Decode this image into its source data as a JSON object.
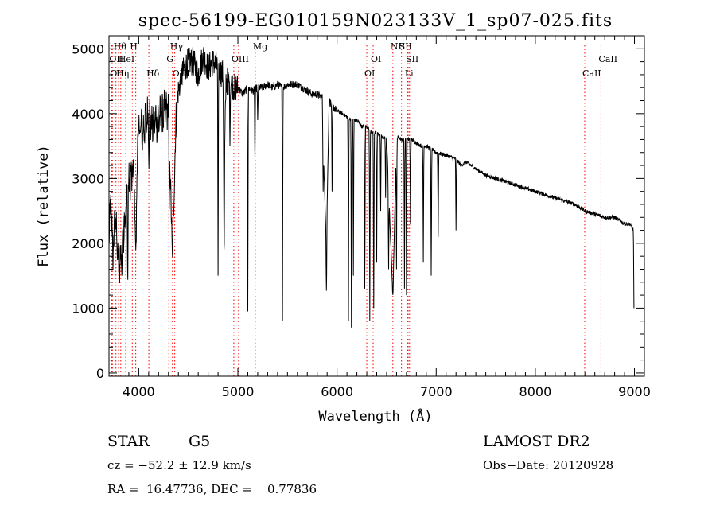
{
  "chart_data": {
    "type": "line",
    "title": "spec-56199-EG010159N023133V_1_sp07-025.fits",
    "xlabel": "Wavelength (Å)",
    "ylabel": "Flux (relative)",
    "xlim": [
      3700,
      9100
    ],
    "ylim": [
      -50,
      5200
    ],
    "xticks": [
      4000,
      5000,
      6000,
      7000,
      8000,
      9000
    ],
    "yticks": [
      0,
      1000,
      2000,
      3000,
      4000,
      5000
    ],
    "grid": false,
    "legend": "none",
    "line_color": "#000000",
    "marker_color": "#ff0000",
    "series": [
      {
        "x": [
          3700,
          3720,
          3740,
          3760,
          3780,
          3800,
          3830,
          3860,
          3890,
          3920,
          3950,
          3970,
          3990,
          4010,
          4040,
          4070,
          4100,
          4130,
          4160,
          4200,
          4250,
          4300,
          4340,
          4380,
          4420,
          4460,
          4500,
          4550,
          4600,
          4650,
          4700,
          4750,
          4800,
          4850,
          4861,
          4880,
          4920,
          4960,
          5000,
          5050,
          5100,
          5150,
          5200,
          5250,
          5300,
          5350,
          5400,
          5450,
          5500,
          5550,
          5600,
          5650,
          5700,
          5750,
          5800,
          5850,
          5870,
          5893,
          5920,
          5960,
          6000,
          6050,
          6100,
          6150,
          6200,
          6250,
          6300,
          6350,
          6400,
          6450,
          6500,
          6563,
          6600,
          6650,
          6700,
          6750,
          6800,
          6850,
          6900,
          6950,
          7000,
          7050,
          7100,
          7150,
          7200,
          7250,
          7300,
          7400,
          7500,
          7600,
          7700,
          7800,
          7900,
          8000,
          8100,
          8200,
          8300,
          8400,
          8500,
          8600,
          8700,
          8800,
          8900,
          8950,
          8990
        ],
        "y": [
          2200,
          2600,
          1800,
          2400,
          2100,
          1500,
          2000,
          2400,
          2800,
          3000,
          3100,
          1900,
          3600,
          3800,
          3700,
          3900,
          4000,
          3800,
          3900,
          3900,
          4000,
          4100,
          1800,
          4200,
          4500,
          4700,
          4800,
          4800,
          4600,
          4900,
          4700,
          4800,
          4700,
          4600,
          2900,
          4500,
          4500,
          4400,
          4400,
          4300,
          4400,
          4350,
          4400,
          4400,
          4450,
          4400,
          4450,
          4400,
          4450,
          4450,
          4450,
          4400,
          4350,
          4300,
          4300,
          4250,
          3000,
          2000,
          4200,
          4100,
          4050,
          4000,
          3950,
          3900,
          3900,
          3800,
          3800,
          3700,
          3700,
          3650,
          3600,
          1200,
          3650,
          3600,
          3600,
          3600,
          3550,
          3500,
          3500,
          3450,
          3400,
          3380,
          3360,
          3330,
          3300,
          3200,
          3250,
          3150,
          3050,
          3000,
          2950,
          2900,
          2850,
          2800,
          2750,
          2700,
          2650,
          2600,
          2500,
          2450,
          2400,
          2400,
          2300,
          2300,
          2200
        ]
      }
    ],
    "absorption_lines": [
      {
        "x": 3830,
        "y": 1500
      },
      {
        "x": 3889,
        "y": 1200
      },
      {
        "x": 3970,
        "y": 1900
      },
      {
        "x": 4102,
        "y": 3100
      },
      {
        "x": 4308,
        "y": 2400
      },
      {
        "x": 4340,
        "y": 1800
      },
      {
        "x": 4383,
        "y": 3600
      },
      {
        "x": 4800,
        "y": 1500
      },
      {
        "x": 4861,
        "y": 1650
      },
      {
        "x": 4920,
        "y": 3500
      },
      {
        "x": 5100,
        "y": 950
      },
      {
        "x": 5172,
        "y": 3200
      },
      {
        "x": 5200,
        "y": 3900
      },
      {
        "x": 5450,
        "y": 800
      },
      {
        "x": 5860,
        "y": 2800
      },
      {
        "x": 5893,
        "y": 1200
      },
      {
        "x": 5950,
        "y": 2800
      },
      {
        "x": 6115,
        "y": 800
      },
      {
        "x": 6145,
        "y": 700
      },
      {
        "x": 6165,
        "y": 1500
      },
      {
        "x": 6280,
        "y": 1300
      },
      {
        "x": 6330,
        "y": 800
      },
      {
        "x": 6370,
        "y": 1000
      },
      {
        "x": 6400,
        "y": 1700
      },
      {
        "x": 6440,
        "y": 2500
      },
      {
        "x": 6490,
        "y": 2700
      },
      {
        "x": 6520,
        "y": 1600
      },
      {
        "x": 6563,
        "y": 1200
      },
      {
        "x": 6600,
        "y": 1600
      },
      {
        "x": 6680,
        "y": 1300
      },
      {
        "x": 6700,
        "y": 1200
      },
      {
        "x": 6740,
        "y": 2300
      },
      {
        "x": 6870,
        "y": 1700
      },
      {
        "x": 6950,
        "y": 1500
      },
      {
        "x": 7020,
        "y": 2100
      },
      {
        "x": 7200,
        "y": 2200
      },
      {
        "x": 8995,
        "y": 1000
      }
    ],
    "line_markers": [
      {
        "x": 3727,
        "label": "OII",
        "row": 2
      },
      {
        "x": 3734,
        "label": "OII",
        "row": 3
      },
      {
        "x": 3770,
        "label": "Hθ",
        "row": 1
      },
      {
        "x": 3797,
        "label": "Hη",
        "row": 3
      },
      {
        "x": 3819,
        "label": "HeI",
        "row": 2
      },
      {
        "x": 3869,
        "label": "",
        "row": 0
      },
      {
        "x": 3935,
        "label": "H",
        "row": 1
      },
      {
        "x": 3970,
        "label": "",
        "row": 0
      },
      {
        "x": 4102,
        "label": "Hδ",
        "row": 3
      },
      {
        "x": 4304,
        "label": "G",
        "row": 2
      },
      {
        "x": 4340,
        "label": "Hγ",
        "row": 1
      },
      {
        "x": 4363,
        "label": "OIII",
        "row": 3
      },
      {
        "x": 4959,
        "label": "OIII",
        "row": 2
      },
      {
        "x": 5007,
        "label": "",
        "row": 0
      },
      {
        "x": 5175,
        "label": "Mg",
        "row": 1
      },
      {
        "x": 6300,
        "label": "OI",
        "row": 3
      },
      {
        "x": 6364,
        "label": "OI",
        "row": 2
      },
      {
        "x": 6563,
        "label": "NII",
        "row": 1
      },
      {
        "x": 6585,
        "label": "",
        "row": 0
      },
      {
        "x": 6650,
        "label": "SII",
        "row": 1
      },
      {
        "x": 6708,
        "label": "Li",
        "row": 3
      },
      {
        "x": 6717,
        "label": "SII",
        "row": 2
      },
      {
        "x": 6731,
        "label": "",
        "row": 0
      },
      {
        "x": 8498,
        "label": "CaII",
        "row": 3
      },
      {
        "x": 8662,
        "label": "CaII",
        "row": 2
      }
    ]
  },
  "info": {
    "object_class": "STAR",
    "subclass": "G5",
    "survey": "LAMOST DR2",
    "redshift_line": "cz = −52.2 ± 12.9 km/s",
    "obs_date": "Obs−Date: 20120928",
    "coords": "RA =  16.47736, DEC =    0.77836"
  }
}
